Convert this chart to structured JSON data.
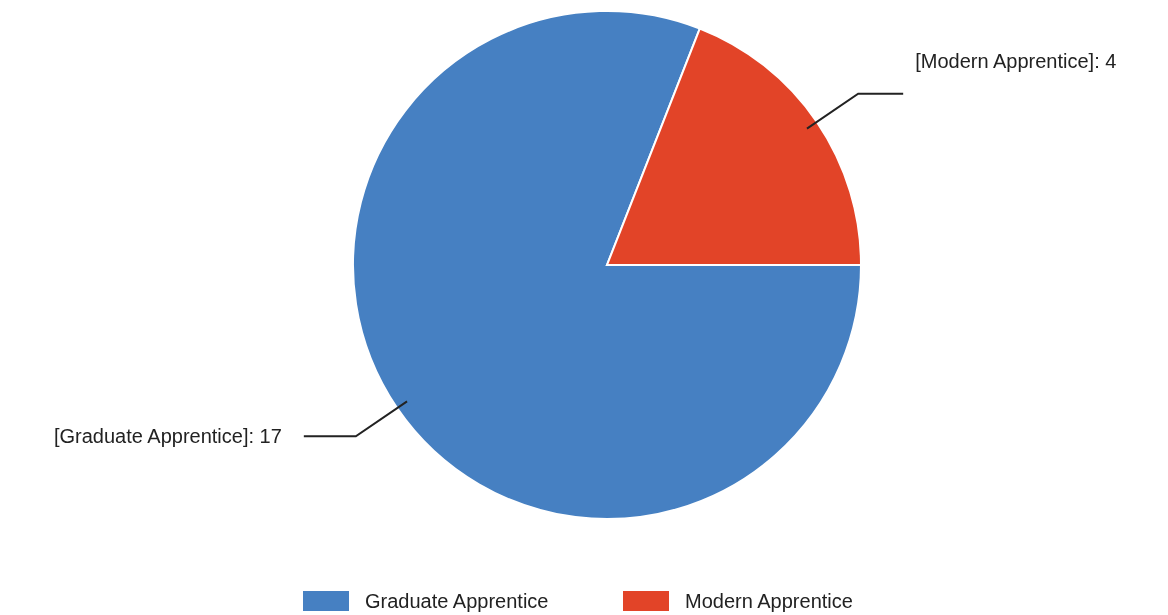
{
  "chart_data": {
    "type": "pie",
    "categories": [
      "Graduate Apprentice",
      "Modern Apprentice"
    ],
    "values": [
      17,
      4
    ],
    "colors": [
      "#4680c2",
      "#e24428"
    ],
    "value_labels": [
      "[Graduate Apprentice]: 17",
      "[Modern Apprentice]: 4"
    ],
    "legend": "bottom"
  }
}
